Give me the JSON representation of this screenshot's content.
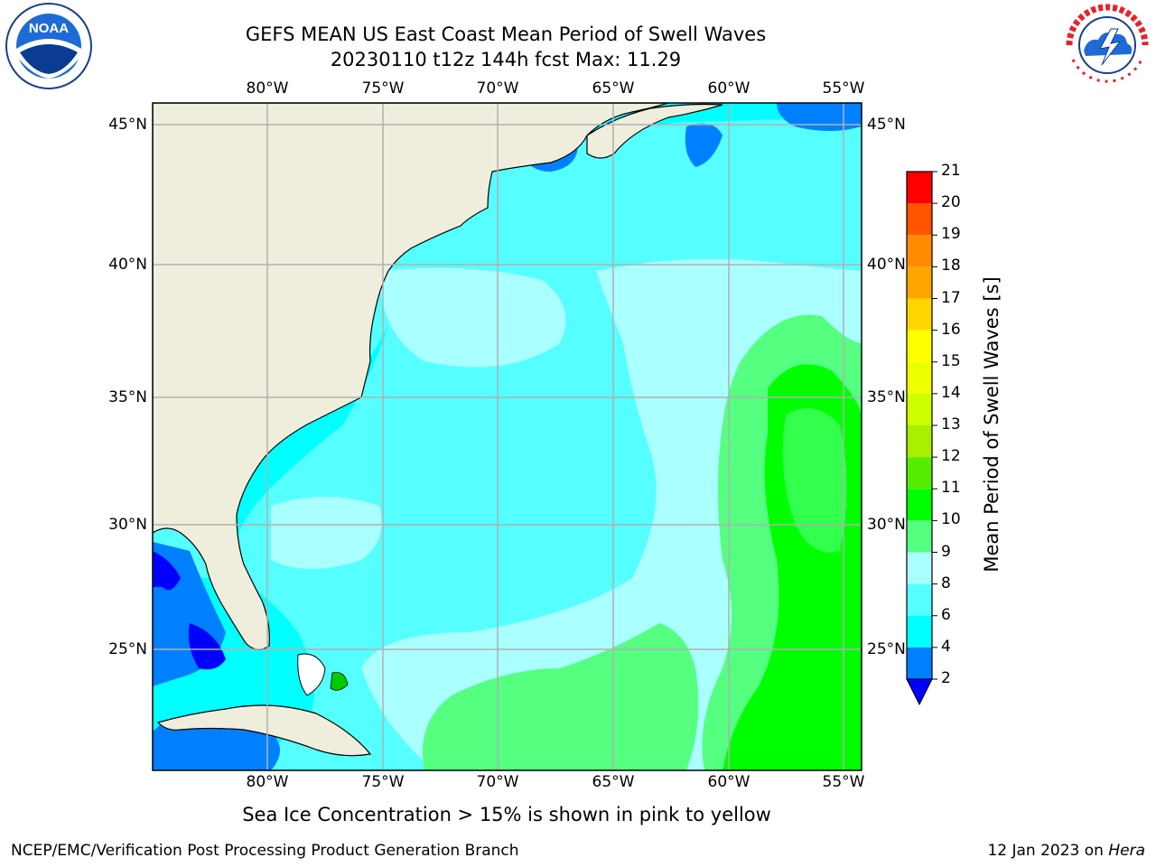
{
  "header": {
    "title_line1": "GEFS MEAN US East Coast Mean Period of Swell Waves",
    "title_line2": "20230110 t12z 144h fcst   Max: 11.29"
  },
  "logos": {
    "left": {
      "icon": "noaa-logo-icon",
      "text": "NOAA",
      "ring_text": "NATIONAL OCEANIC AND ATMOSPHERIC ADMINISTRATION · U.S. DEPARTMENT OF COMMERCE"
    },
    "right": {
      "icon": "nws-logo-icon",
      "ring_text": "NATIONAL WEATHER SERVICE"
    }
  },
  "map": {
    "lon_ticks": [
      "80°W",
      "75°W",
      "70°W",
      "65°W",
      "60°W",
      "55°W"
    ],
    "lat_ticks": [
      "45°N",
      "40°N",
      "35°N",
      "30°N",
      "25°N"
    ],
    "land_color": "#efeedd",
    "grid_color": "#b0b0b0"
  },
  "colorbar": {
    "label": "Mean Period of Swell Waves [s]",
    "ticks": [
      "2",
      "4",
      "6",
      "8",
      "9",
      "10",
      "11",
      "12",
      "13",
      "14",
      "15",
      "16",
      "17",
      "18",
      "19",
      "20",
      "21"
    ],
    "under_color": "#0000ff",
    "colors": [
      "#0080ff",
      "#00ffff",
      "#55ffff",
      "#aaffff",
      "#55ff80",
      "#00ff00",
      "#55ee00",
      "#aaee00",
      "#ccff00",
      "#eeff00",
      "#ffff00",
      "#ffd700",
      "#ffa500",
      "#ff8c00",
      "#ff5500",
      "#ff2200",
      "#ff0000"
    ]
  },
  "note": "Sea Ice Concentration > 15% is shown in pink to yellow",
  "footer": {
    "left": "NCEP/EMC/Verification Post Processing Product Generation Branch",
    "right_date": "12 Jan 2023 on ",
    "right_host": "Hera"
  }
}
